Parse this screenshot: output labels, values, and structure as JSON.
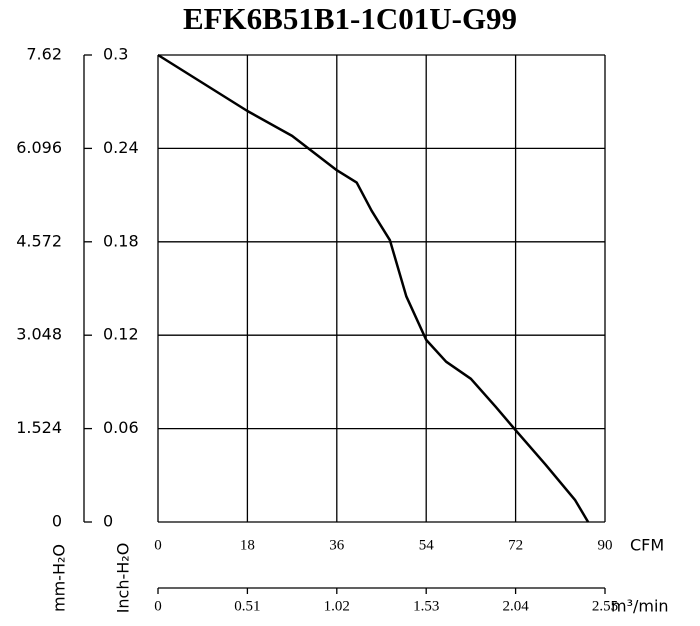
{
  "chart_data": {
    "type": "line",
    "title": "EFK6B51B1-1C01U-G99",
    "x": [
      0,
      9,
      18,
      27,
      36,
      40,
      43,
      46.7,
      50,
      54,
      58,
      63,
      68,
      72,
      78,
      84,
      86.6
    ],
    "values": [
      0.3,
      0.282,
      0.264,
      0.248,
      0.226,
      0.218,
      0.2,
      0.181,
      0.145,
      0.117,
      0.103,
      0.092,
      0.074,
      0.059,
      0.037,
      0.014,
      0
    ],
    "color": "#000000",
    "xlabel": "CFM",
    "xlim": [
      0,
      90
    ],
    "xticks": [
      0,
      18,
      36,
      54,
      72,
      90
    ],
    "ylabel": "Inch-H₂O",
    "ylim": [
      0,
      0.3
    ],
    "yticks": [
      0,
      0.06,
      0.12,
      0.18,
      0.24,
      0.3
    ],
    "y2label": "mm-H₂O",
    "y2lim": [
      0,
      7.62
    ],
    "y2ticks": [
      0,
      1.524,
      3.048,
      4.572,
      6.096,
      7.62
    ],
    "x2label": "m³/min",
    "x2lim": [
      0,
      2.55
    ],
    "x2ticks": [
      0,
      0.51,
      1.02,
      1.53,
      2.04,
      2.55
    ],
    "grid": true
  }
}
